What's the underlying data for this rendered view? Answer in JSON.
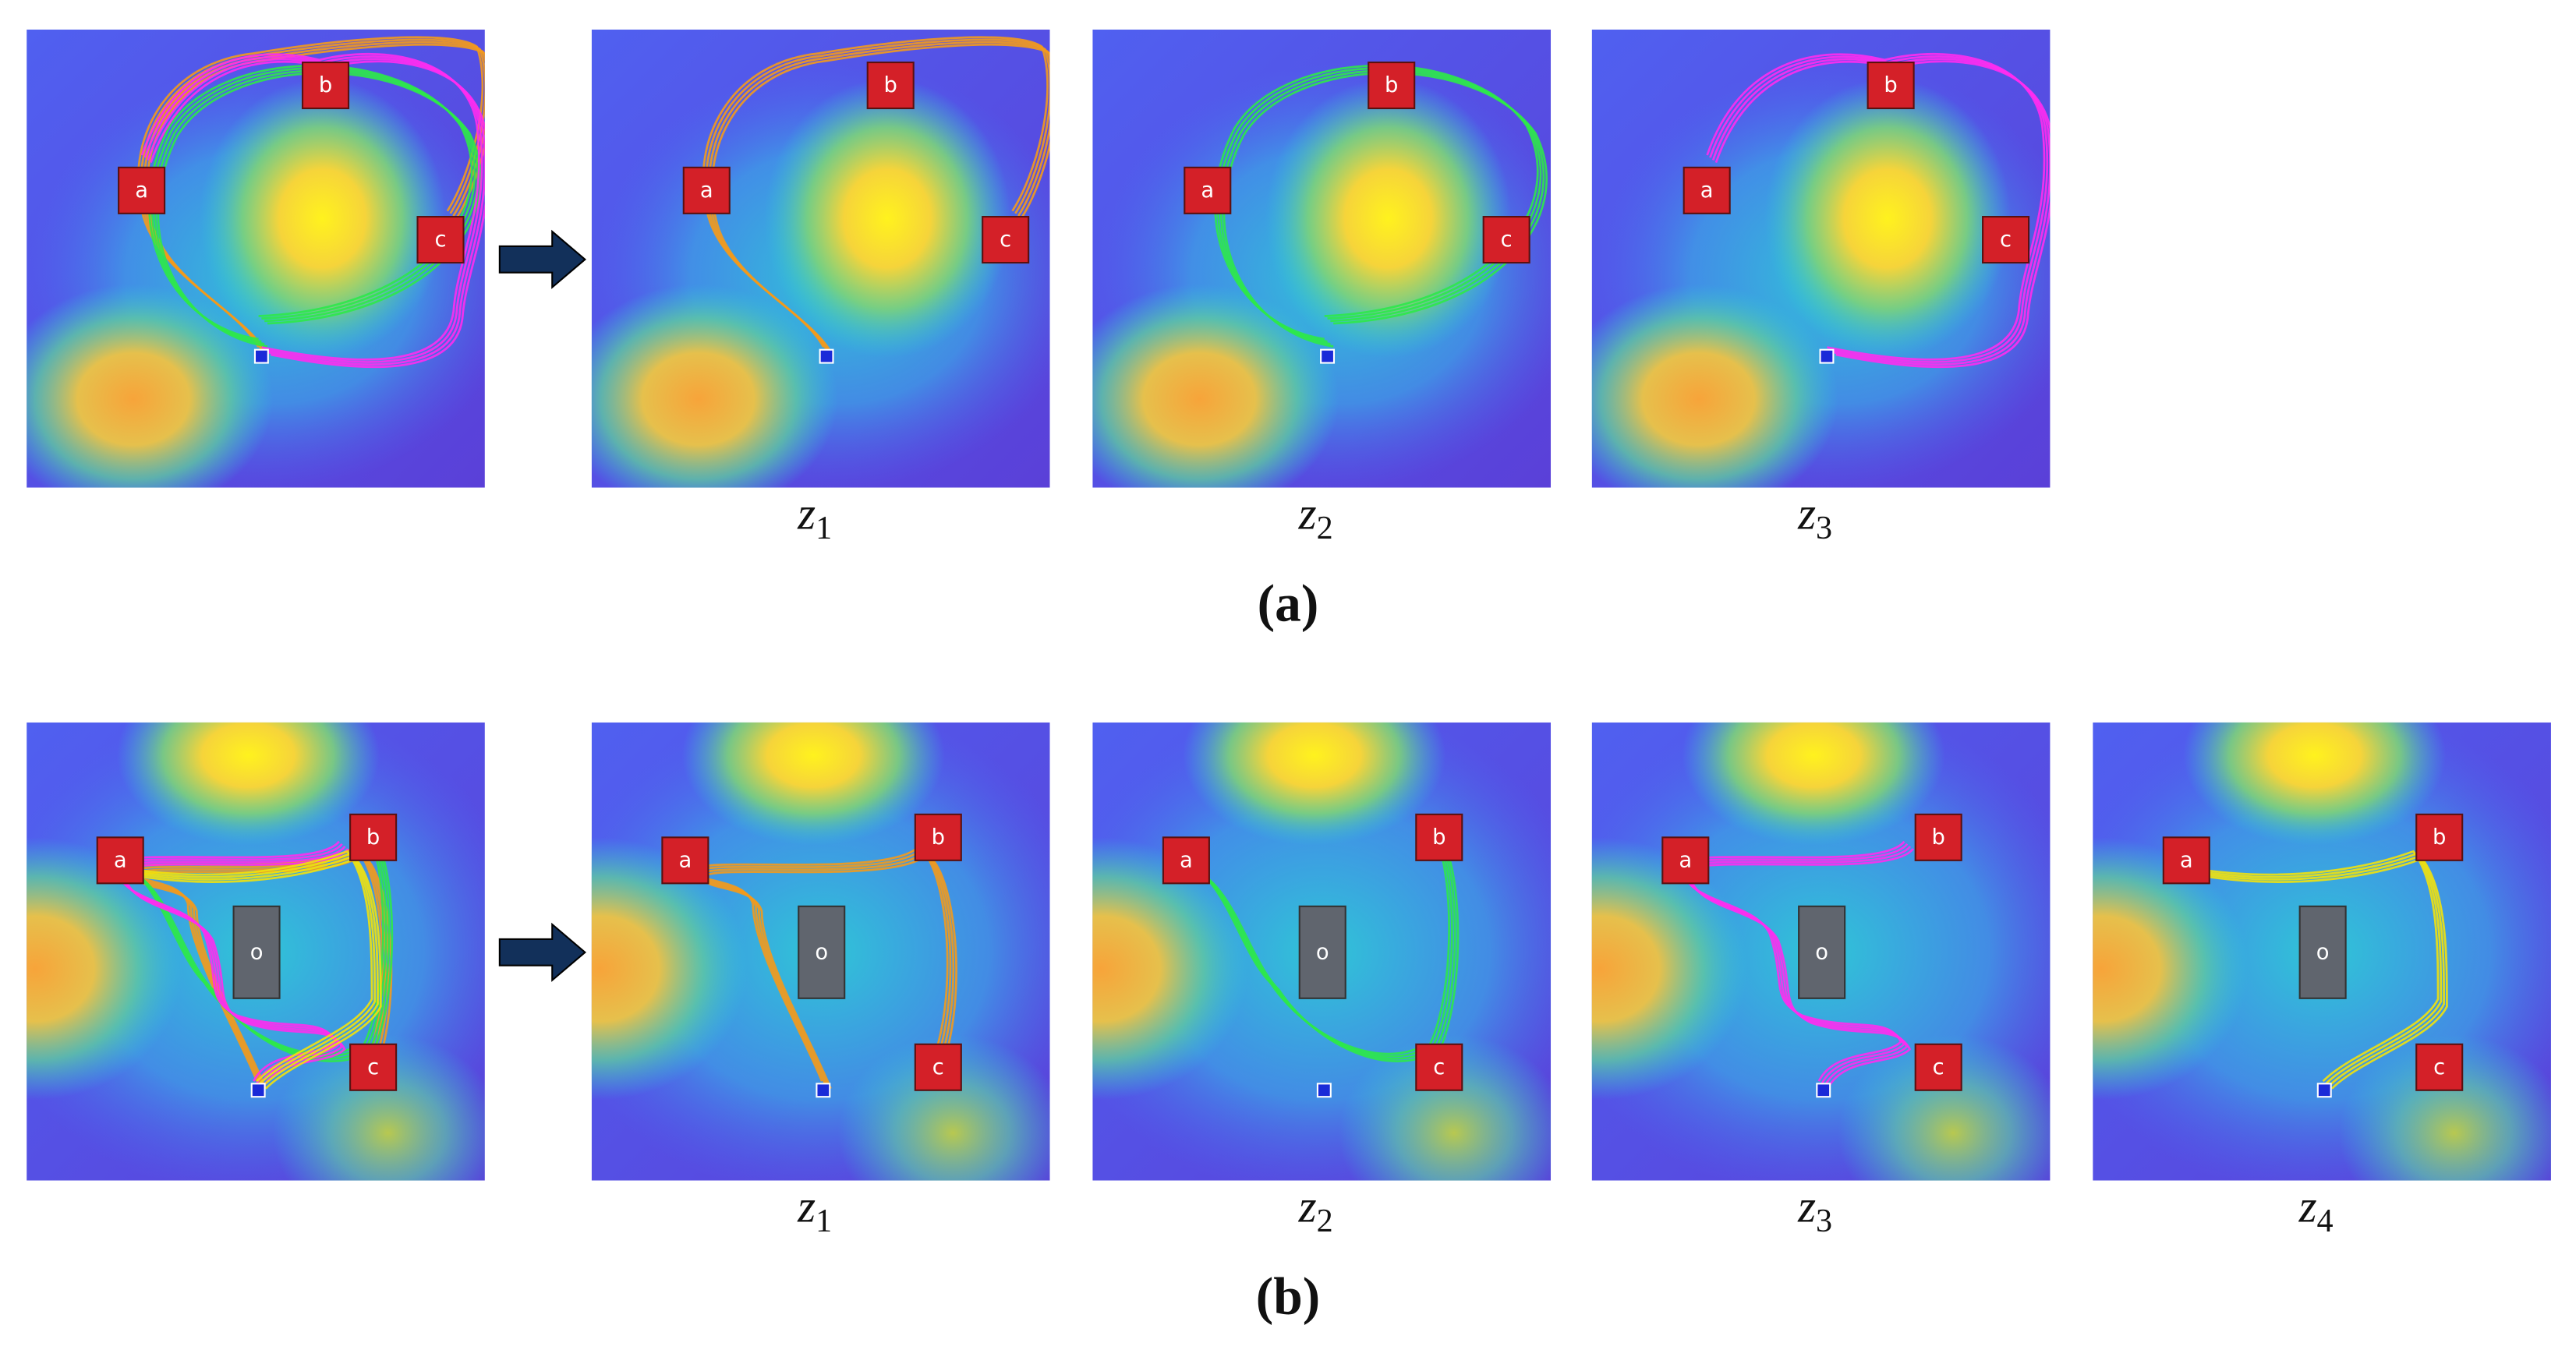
{
  "subfigures": [
    {
      "caption": "(a)",
      "markers": [
        "a",
        "b",
        "c"
      ],
      "outputs": [
        {
          "symbol": "z",
          "index": "1"
        },
        {
          "symbol": "z",
          "index": "2"
        },
        {
          "symbol": "z",
          "index": "3"
        }
      ]
    },
    {
      "caption": "(b)",
      "markers": [
        "a",
        "b",
        "c"
      ],
      "obstacle": "o",
      "outputs": [
        {
          "symbol": "z",
          "index": "1"
        },
        {
          "symbol": "z",
          "index": "2"
        },
        {
          "symbol": "z",
          "index": "3"
        },
        {
          "symbol": "z",
          "index": "4"
        }
      ]
    }
  ]
}
